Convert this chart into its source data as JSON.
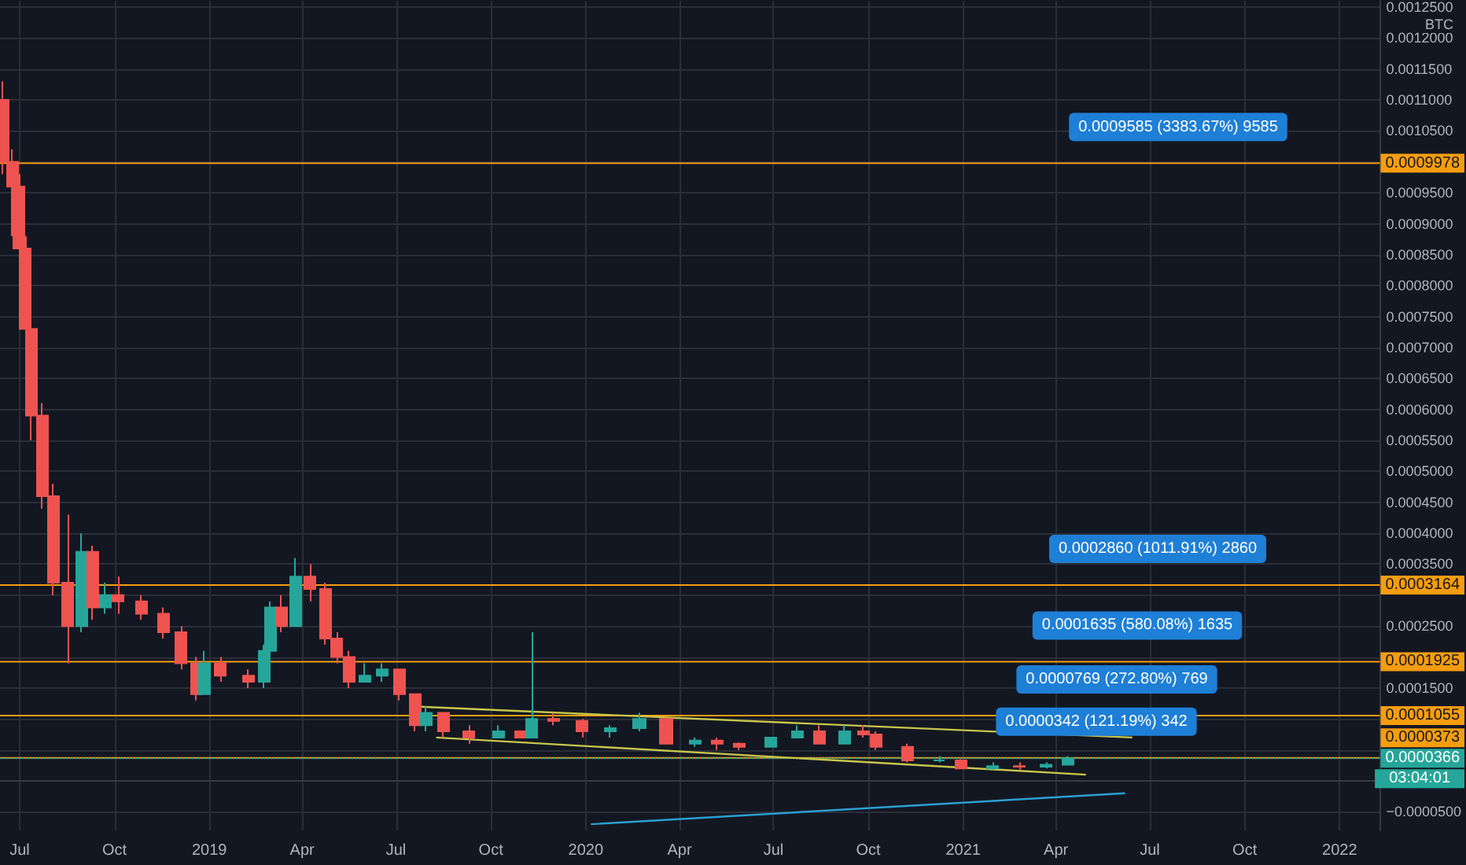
{
  "chart_data": {
    "type": "candlestick",
    "ylabel": "BTC",
    "x": [
      "2018-06-15",
      "2018-06-24",
      "2018-07-01",
      "2018-07-07",
      "2018-07-12",
      "2018-07-23",
      "2018-08-03",
      "2018-08-17",
      "2018-08-30",
      "2018-09-10",
      "2018-09-22",
      "2018-10-05",
      "2018-10-27",
      "2018-11-18",
      "2018-12-05",
      "2018-12-19",
      "2018-12-27",
      "2019-01-12",
      "2019-02-08",
      "2019-02-23",
      "2019-03-01",
      "2019-03-12",
      "2019-03-26",
      "2019-04-09",
      "2019-04-24",
      "2019-05-05",
      "2019-05-16",
      "2019-06-01",
      "2019-06-17",
      "2019-07-04",
      "2019-07-19",
      "2019-07-30",
      "2019-08-16",
      "2019-09-10",
      "2019-10-08",
      "2019-10-30",
      "2019-11-10",
      "2019-12-01",
      "2019-12-29",
      "2020-01-25",
      "2020-02-22",
      "2020-03-19",
      "2020-04-16",
      "2020-05-07",
      "2020-05-29",
      "2020-06-29",
      "2020-07-24",
      "2020-08-14",
      "2020-09-08",
      "2020-09-26",
      "2020-10-08",
      "2020-11-08",
      "2020-12-09",
      "2020-12-30",
      "2021-01-30",
      "2021-02-25",
      "2021-03-23",
      "2021-04-12"
    ],
    "ohlc": [
      [
        0.0011,
        0.00113,
        0.00098,
        0.001
      ],
      [
        0.001,
        0.00102,
        0.00088,
        0.00096
      ],
      [
        0.00096,
        0.00098,
        0.00082,
        0.00086
      ],
      [
        0.00086,
        0.00088,
        0.00068,
        0.00073
      ],
      [
        0.00073,
        0.00075,
        0.00055,
        0.00059
      ],
      [
        0.00059,
        0.00061,
        0.00044,
        0.00046
      ],
      [
        0.00046,
        0.00048,
        0.0003,
        0.00032
      ],
      [
        0.00032,
        0.00043,
        0.00019,
        0.00025
      ],
      [
        0.00025,
        0.0004,
        0.00024,
        0.00037
      ],
      [
        0.00037,
        0.00038,
        0.00026,
        0.00028
      ],
      [
        0.00028,
        0.00032,
        0.00027,
        0.0003
      ],
      [
        0.0003,
        0.00033,
        0.00027,
        0.00029
      ],
      [
        0.00029,
        0.0003,
        0.00026,
        0.00027
      ],
      [
        0.00027,
        0.00028,
        0.00023,
        0.00024
      ],
      [
        0.00024,
        0.00025,
        0.00018,
        0.00019
      ],
      [
        0.00019,
        0.0002,
        0.00013,
        0.00014
      ],
      [
        0.00014,
        0.00021,
        0.00014,
        0.00019
      ],
      [
        0.00019,
        0.0002,
        0.00016,
        0.00017
      ],
      [
        0.00017,
        0.00018,
        0.00015,
        0.00016
      ],
      [
        0.00016,
        0.00022,
        0.00015,
        0.00021
      ],
      [
        0.00021,
        0.00029,
        0.0002,
        0.00028
      ],
      [
        0.00028,
        0.0003,
        0.00024,
        0.00025
      ],
      [
        0.00025,
        0.00036,
        0.00025,
        0.00033
      ],
      [
        0.00033,
        0.00035,
        0.00029,
        0.00031
      ],
      [
        0.00031,
        0.00032,
        0.00022,
        0.00023
      ],
      [
        0.00023,
        0.00024,
        0.00019,
        0.0002
      ],
      [
        0.0002,
        0.00021,
        0.00015,
        0.00016
      ],
      [
        0.00016,
        0.00019,
        0.00016,
        0.00017
      ],
      [
        0.00017,
        0.00019,
        0.00016,
        0.00018
      ],
      [
        0.00018,
        0.00018,
        0.00013,
        0.00014
      ],
      [
        0.00014,
        0.00014,
        8e-05,
        9e-05
      ],
      [
        9e-05,
        0.00012,
        8e-05,
        0.00011
      ],
      [
        0.00011,
        0.00011,
        7e-05,
        8e-05
      ],
      [
        8e-05,
        9e-05,
        6e-05,
        7e-05
      ],
      [
        7e-05,
        9e-05,
        7e-05,
        8e-05
      ],
      [
        8e-05,
        8e-05,
        7e-05,
        7e-05
      ],
      [
        7e-05,
        0.00024,
        7e-05,
        0.0001
      ],
      [
        0.0001,
        0.00011,
        9e-05,
        9.7e-05
      ],
      [
        9.7e-05,
        0.0001,
        7e-05,
        8e-05
      ],
      [
        8e-05,
        9e-05,
        7e-05,
        8.5e-05
      ],
      [
        8.5e-05,
        0.00011,
        8e-05,
        0.0001
      ],
      [
        0.0001,
        0.0001,
        6e-05,
        6e-05
      ],
      [
        6e-05,
        7e-05,
        5.5e-05,
        6.5e-05
      ],
      [
        6.5e-05,
        7e-05,
        5e-05,
        6e-05
      ],
      [
        6e-05,
        6.2e-05,
        5e-05,
        5.5e-05
      ],
      [
        5.5e-05,
        7e-05,
        5.5e-05,
        7e-05
      ],
      [
        7e-05,
        9e-05,
        7e-05,
        8e-05
      ],
      [
        8e-05,
        9e-05,
        6e-05,
        6e-05
      ],
      [
        6e-05,
        9e-05,
        6e-05,
        8e-05
      ],
      [
        8e-05,
        9e-05,
        7e-05,
        7.5e-05
      ],
      [
        7.5e-05,
        8e-05,
        5e-05,
        5.5e-05
      ],
      [
        5.5e-05,
        6e-05,
        3e-05,
        3.3e-05
      ],
      [
        3.3e-05,
        4e-05,
        3e-05,
        3.3e-05
      ],
      [
        3.3e-05,
        3.5e-05,
        2e-05,
        2e-05
      ],
      [
        2e-05,
        3e-05,
        1.8e-05,
        2.4e-05
      ],
      [
        2.4e-05,
        3e-05,
        1.8e-05,
        2.3e-05
      ],
      [
        2.3e-05,
        3e-05,
        2e-05,
        2.6e-05
      ],
      [
        2.6e-05,
        4e-05,
        2.5e-05,
        3.66e-05
      ]
    ],
    "series": [
      {
        "type": "line",
        "color": "#c8c64a",
        "x": [
          "2019-07-21",
          "2021-06-14"
        ],
        "values": [
          0.00012,
          7e-05
        ]
      },
      {
        "type": "line",
        "color": "#c8c64a",
        "x": [
          "2019-08-09",
          "2021-04-30"
        ],
        "values": [
          7e-05,
          1e-05
        ]
      },
      {
        "type": "line",
        "color": "#2a9fd0",
        "x": [
          "2020-01-06",
          "2021-06-07"
        ],
        "values": [
          -7e-05,
          -2e-05
        ]
      }
    ],
    "xlim": [
      "2018-06-12",
      "2022-02-09"
    ],
    "xticks": [
      {
        "value": "2018-07-01",
        "label": "Jul"
      },
      {
        "value": "2018-10-01",
        "label": "Oct"
      },
      {
        "value": "2019-01-01",
        "label": "2019"
      },
      {
        "value": "2019-04-01",
        "label": "Apr"
      },
      {
        "value": "2019-07-01",
        "label": "Jul"
      },
      {
        "value": "2019-10-01",
        "label": "Oct"
      },
      {
        "value": "2020-01-01",
        "label": "2020"
      },
      {
        "value": "2020-04-01",
        "label": "Apr"
      },
      {
        "value": "2020-07-01",
        "label": "Jul"
      },
      {
        "value": "2020-10-01",
        "label": "Oct"
      },
      {
        "value": "2021-01-01",
        "label": "2021"
      },
      {
        "value": "2021-04-01",
        "label": "Apr"
      },
      {
        "value": "2021-07-01",
        "label": "Jul"
      },
      {
        "value": "2021-10-01",
        "label": "Oct"
      },
      {
        "value": "2022-01-01",
        "label": "2022"
      }
    ],
    "ylim": [
      -8e-05,
      0.00126
    ],
    "yticks": [
      {
        "value": -5e-05,
        "label": "−0.0000500"
      },
      {
        "value": 0,
        "label": null
      },
      {
        "value": 5e-05,
        "label": null
      },
      {
        "value": 0.0001,
        "label": null
      },
      {
        "value": 0.00015,
        "label": "0.0001500"
      },
      {
        "value": 0.0002,
        "label": null
      },
      {
        "value": 0.00025,
        "label": "0.0002500"
      },
      {
        "value": 0.0003,
        "label": null
      },
      {
        "value": 0.00035,
        "label": "0.0003500"
      },
      {
        "value": 0.0004,
        "label": "0.0004000"
      },
      {
        "value": 0.00045,
        "label": "0.0004500"
      },
      {
        "value": 0.0005,
        "label": "0.0005000"
      },
      {
        "value": 0.00055,
        "label": "0.0005500"
      },
      {
        "value": 0.0006,
        "label": "0.0006000"
      },
      {
        "value": 0.00065,
        "label": "0.0006500"
      },
      {
        "value": 0.0007,
        "label": "0.0007000"
      },
      {
        "value": 0.00075,
        "label": "0.0007500"
      },
      {
        "value": 0.0008,
        "label": "0.0008000"
      },
      {
        "value": 0.00085,
        "label": "0.0008500"
      },
      {
        "value": 0.0009,
        "label": "0.0009000"
      },
      {
        "value": 0.00095,
        "label": "0.0009500"
      },
      {
        "value": 0.001,
        "label": null
      },
      {
        "value": 0.00105,
        "label": "0.0010500"
      },
      {
        "value": 0.0011,
        "label": "0.0011000"
      },
      {
        "value": 0.00115,
        "label": "0.0011500"
      },
      {
        "value": 0.0012,
        "label": "0.0012000"
      },
      {
        "value": 0.00125,
        "label": "0.0012500"
      }
    ],
    "ref_lines": [
      {
        "axis": "y",
        "value": 0.0009978,
        "label": "0.0009978",
        "color": "#f59d0f"
      },
      {
        "axis": "y",
        "value": 0.0003164,
        "label": "0.0003164",
        "color": "#f59d0f"
      },
      {
        "axis": "y",
        "value": 0.0001925,
        "label": "0.0001925",
        "color": "#f59d0f"
      },
      {
        "axis": "y",
        "value": 0.0001055,
        "label": "0.0001055",
        "color": "#f59d0f"
      },
      {
        "axis": "y",
        "value": 3.73e-05,
        "label": "0.0000373",
        "color": "#f59d0f"
      },
      {
        "axis": "y",
        "value": 3.66e-05,
        "label": "0.0000366",
        "color": "#26a69a",
        "line_style": "dotted"
      }
    ],
    "annotations": [
      "0.0009585 (3383.67%) 9585",
      "0.0002860 (1011.91%) 2860",
      "0.0001635 (580.08%) 1635",
      "0.0000769 (272.80%) 769",
      "0.0000342 (121.19%) 342",
      "03:04:01"
    ],
    "grid": true,
    "marker": "none"
  }
}
